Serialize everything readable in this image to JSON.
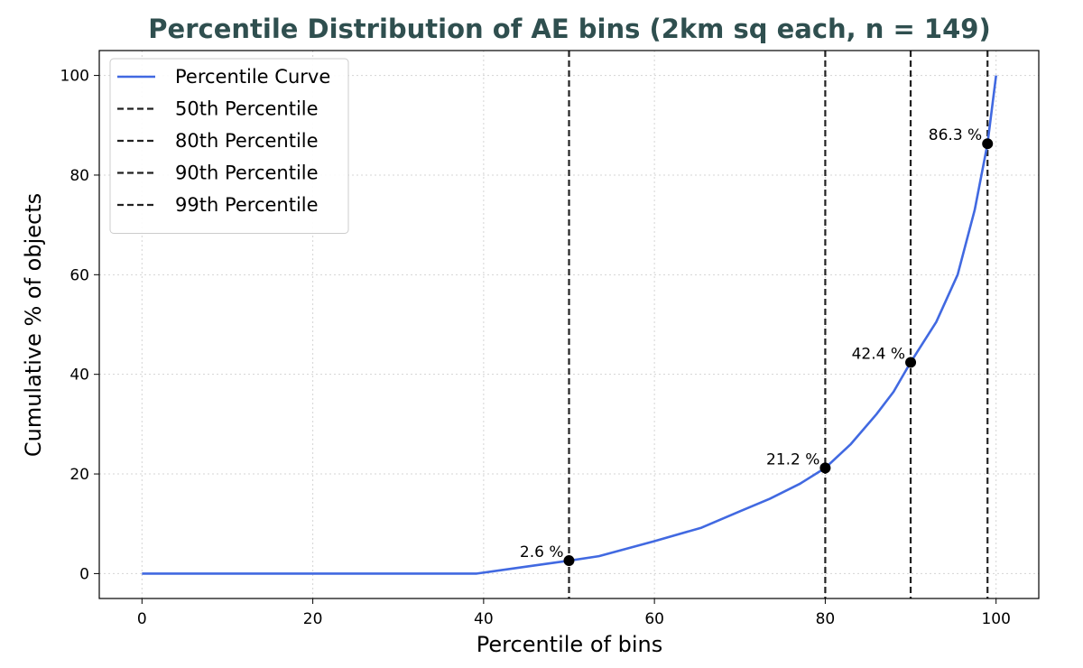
{
  "chart_data": {
    "type": "line",
    "title": "Percentile Distribution of AE bins (2km sq each, n = 149)",
    "xlabel": "Percentile of bins",
    "ylabel": "Cumulative % of objects",
    "xlim": [
      -5,
      105
    ],
    "ylim": [
      -5,
      105
    ],
    "xticks": [
      0,
      20,
      40,
      60,
      80,
      100
    ],
    "yticks": [
      0,
      20,
      40,
      60,
      80,
      100
    ],
    "grid": true,
    "legend_position": "top-left",
    "series": [
      {
        "name": "Percentile Curve",
        "color": "#4169e1",
        "x": [
          0,
          10,
          20,
          30,
          39.2,
          45,
          50,
          53.5,
          60,
          65.5,
          70,
          73.5,
          77,
          80,
          83,
          86,
          88,
          90,
          93,
          95.5,
          97.5,
          99,
          100
        ],
        "y": [
          0,
          0,
          0,
          0,
          0,
          1.4,
          2.6,
          3.5,
          6.5,
          9.2,
          12.5,
          15.0,
          18.0,
          21.2,
          26.0,
          32.0,
          36.5,
          42.4,
          50.5,
          60.0,
          73.0,
          86.3,
          100
        ]
      }
    ],
    "vlines": [
      {
        "name": "50th Percentile",
        "x": 50,
        "color": "#222222",
        "style": "dashed"
      },
      {
        "name": "80th Percentile",
        "x": 80,
        "color": "#222222",
        "style": "dashed"
      },
      {
        "name": "90th Percentile",
        "x": 90,
        "color": "#222222",
        "style": "dashed"
      },
      {
        "name": "99th Percentile",
        "x": 99,
        "color": "#222222",
        "style": "dashed"
      }
    ],
    "markers": [
      {
        "x": 50,
        "y": 2.6,
        "label": "2.6 %"
      },
      {
        "x": 80,
        "y": 21.2,
        "label": "21.2 %"
      },
      {
        "x": 90,
        "y": 42.4,
        "label": "42.4 %"
      },
      {
        "x": 99,
        "y": 86.3,
        "label": "86.3 %"
      }
    ]
  }
}
